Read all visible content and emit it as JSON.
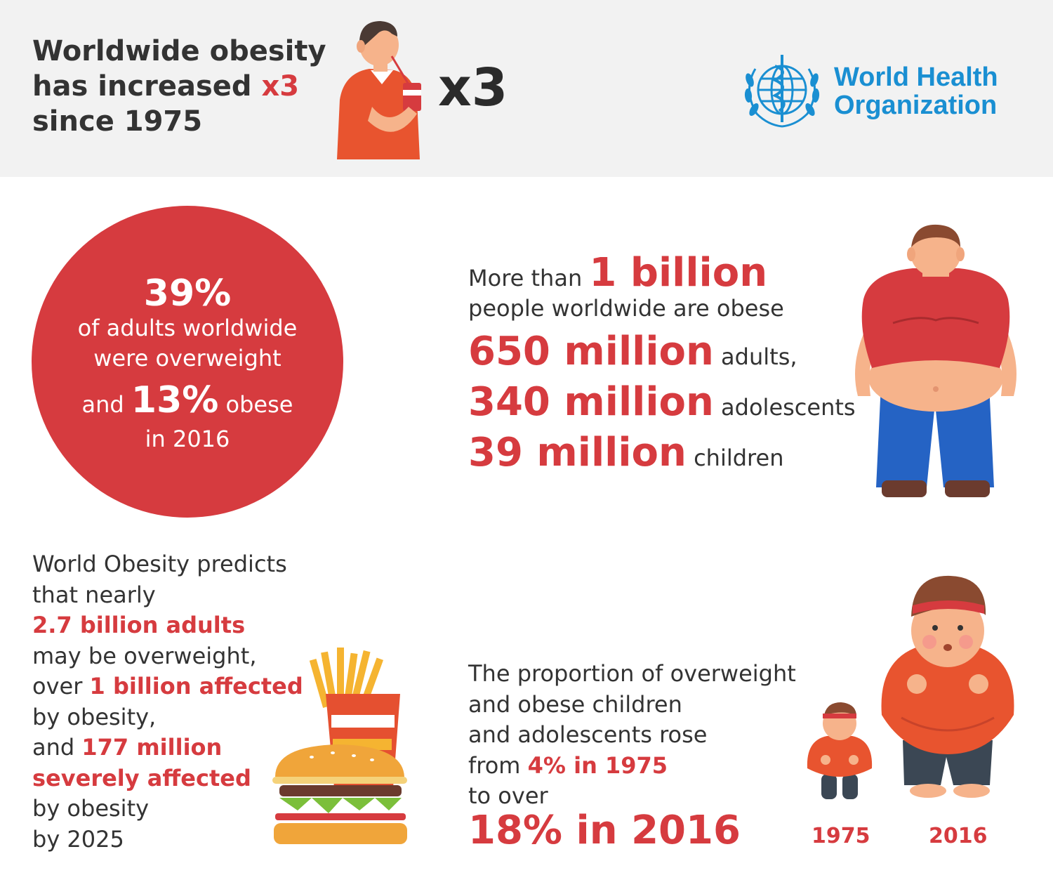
{
  "header": {
    "title_line1": "Worldwide obesity",
    "title_line2_prefix": "has increased ",
    "title_line2_highlight": "x3",
    "title_line3": "since 1975",
    "big_multiplier": "x3",
    "who_logo": {
      "line1": "World Health",
      "line2": "Organization",
      "emblem_icon": "who-emblem-icon"
    }
  },
  "adults_circle": {
    "pct_overweight": "39%",
    "line1": "of adults worldwide",
    "line2": "were overweight",
    "and_label": "and",
    "pct_obese": "13%",
    "obese_label": "obese",
    "year_label": "in 2016"
  },
  "obese_people": {
    "intro_prefix": "More than",
    "total": "1 billion",
    "intro_suffix": "people worldwide are obese",
    "rows": [
      {
        "value": "650 million",
        "label": "adults,"
      },
      {
        "value": "340 million",
        "label": "adolescents"
      },
      {
        "value": "39 million",
        "label": "children"
      }
    ]
  },
  "prediction": {
    "line1": "World Obesity predicts",
    "line2": "that nearly",
    "highlight1": "2.7 billion adults",
    "line4": "may be overweight,",
    "line5_prefix": "over ",
    "highlight2": "1 billion affected",
    "line6": "by obesity,",
    "line7_prefix": "and ",
    "highlight3a": "177 million",
    "highlight3b": "severely affected",
    "line9": "by obesity",
    "line10": "by 2025"
  },
  "children": {
    "line1": "The proportion of overweight",
    "line2": "and obese children",
    "line3": "and adolescents rose",
    "line4_prefix": "from ",
    "from_value": "4% in 1975",
    "line5": "to over",
    "to_value": "18% in 2016",
    "year_small": "1975",
    "year_large": "2016"
  },
  "colors": {
    "accent_red": "#d63b3f",
    "who_blue": "#1a8fd2",
    "text_dark": "#333333",
    "header_bg": "#f2f2f2"
  }
}
